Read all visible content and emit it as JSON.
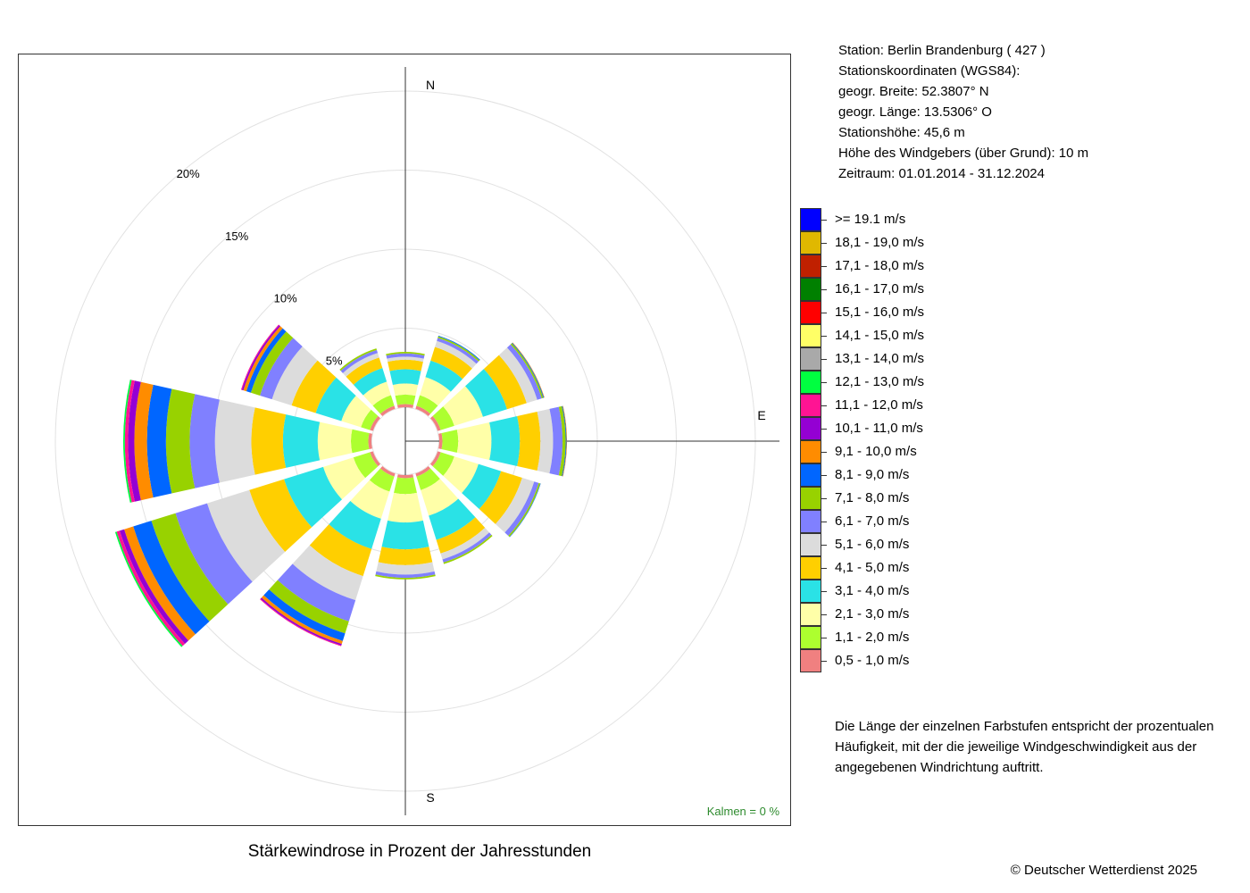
{
  "chart_data": {
    "type": "windrose",
    "title": "Stärkewindrose in Prozent der Jahresstunden",
    "radial_ticks": [
      "5%",
      "10%",
      "15%",
      "20%"
    ],
    "radial_tick_values": [
      5,
      10,
      15,
      20
    ],
    "compass": {
      "n": "N",
      "e": "E",
      "s": "S"
    },
    "calm_label": "Kalmen  =  0 %",
    "directions_deg": [
      0,
      30,
      60,
      90,
      120,
      150,
      180,
      210,
      240,
      270,
      300,
      330
    ],
    "speed_classes": [
      {
        "label": "0,5 - 1,0 m/s",
        "color": "#F08080"
      },
      {
        "label": "1,1 - 2,0 m/s",
        "color": "#ADFF2F"
      },
      {
        "label": "2,1 - 3,0 m/s",
        "color": "#FFFFA8"
      },
      {
        "label": "3,1 - 4,0 m/s",
        "color": "#2AE2E6"
      },
      {
        "label": "4,1 - 5,0 m/s",
        "color": "#FFCF00"
      },
      {
        "label": "5,1 - 6,0 m/s",
        "color": "#DCDCDC"
      },
      {
        "label": "6,1 - 7,0 m/s",
        "color": "#8080FF"
      },
      {
        "label": "7,1 - 8,0 m/s",
        "color": "#98D200"
      },
      {
        "label": "8,1 - 9,0 m/s",
        "color": "#0066FF"
      },
      {
        "label": "9,1 - 10,0 m/s",
        "color": "#FF8C00"
      },
      {
        "label": "10,1 - 11,0 m/s",
        "color": "#9400D3"
      },
      {
        "label": "11,1 - 12,0 m/s",
        "color": "#FF1493"
      },
      {
        "label": "12,1 - 13,0 m/s",
        "color": "#00FF40"
      },
      {
        "label": "13,1 - 14,0 m/s",
        "color": "#A9A9A9"
      },
      {
        "label": "14,1 - 15,0 m/s",
        "color": "#FFFF66"
      },
      {
        "label": "15,1 - 16,0 m/s",
        "color": "#FF0000"
      },
      {
        "label": "16,1 - 17,0 m/s",
        "color": "#008000"
      },
      {
        "label": "17,1 - 18,0 m/s",
        "color": "#C02000"
      },
      {
        "label": "18,1 - 19,0 m/s",
        "color": "#E0B800"
      },
      {
        "label": ">= 19.1 m/s",
        "color": "#0000FF"
      }
    ],
    "series": [
      {
        "direction": 0,
        "values": [
          0.2,
          0.6,
          0.7,
          0.9,
          0.6,
          0.2,
          0.2,
          0.1
        ]
      },
      {
        "direction": 30,
        "values": [
          0.2,
          0.7,
          1.2,
          1.1,
          0.9,
          0.4,
          0.2,
          0.1,
          0.05
        ]
      },
      {
        "direction": 60,
        "values": [
          0.2,
          0.9,
          1.9,
          1.6,
          1.3,
          0.7,
          0.3,
          0.1,
          0.05,
          0.03
        ]
      },
      {
        "direction": 90,
        "values": [
          0.2,
          1.0,
          2.1,
          1.8,
          1.3,
          0.8,
          0.6,
          0.2,
          0.05,
          0.03
        ]
      },
      {
        "direction": 120,
        "values": [
          0.2,
          0.9,
          1.6,
          1.5,
          1.4,
          0.8,
          0.3,
          0.1,
          0.03
        ]
      },
      {
        "direction": 150,
        "values": [
          0.2,
          0.9,
          1.7,
          1.6,
          0.9,
          0.4,
          0.2,
          0.1
        ]
      },
      {
        "direction": 180,
        "values": [
          0.2,
          1.0,
          1.8,
          1.7,
          1.0,
          0.6,
          0.2,
          0.1
        ]
      },
      {
        "direction": 210,
        "values": [
          0.2,
          1.0,
          1.8,
          2.0,
          1.8,
          1.6,
          1.4,
          0.8,
          0.5,
          0.2,
          0.1,
          0.05
        ]
      },
      {
        "direction": 240,
        "values": [
          0.2,
          1.1,
          2.0,
          2.6,
          2.3,
          2.8,
          2.1,
          1.6,
          1.2,
          0.6,
          0.3,
          0.2,
          0.1
        ]
      },
      {
        "direction": 270,
        "values": [
          0.2,
          1.1,
          2.1,
          2.2,
          2.0,
          2.3,
          1.6,
          1.5,
          1.2,
          0.8,
          0.4,
          0.2,
          0.1
        ]
      },
      {
        "direction": 300,
        "values": [
          0.2,
          0.6,
          1.3,
          1.7,
          1.6,
          1.3,
          0.8,
          0.6,
          0.3,
          0.2,
          0.1,
          0.05
        ]
      },
      {
        "direction": 330,
        "values": [
          0.2,
          0.7,
          0.9,
          0.9,
          0.7,
          0.3,
          0.2,
          0.1
        ]
      }
    ]
  },
  "station": {
    "line1": "Station:  Berlin Brandenburg  ( 427 )",
    "line2": "Stationskoordinaten (WGS84):",
    "line3": "geogr. Breite: 52.3807° N",
    "line4": "geogr. Länge: 13.5306° O",
    "line5": "Stationshöhe: 45,6 m",
    "line6": "Höhe des Windgebers (über Grund): 10 m",
    "line7": "Zeitraum: 01.01.2014 - 31.12.2024"
  },
  "note": "Die Länge der einzelnen Farbstufen entspricht der prozentualen Häufigkeit, mit der die jeweilige Windgeschwindigkeit aus der angegebenen Windrichtung auftritt.",
  "copyright": "© Deutscher Wetterdienst  2025"
}
